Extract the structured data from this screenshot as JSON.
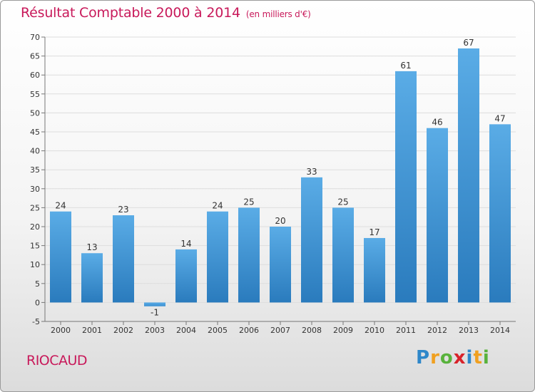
{
  "header": {
    "title": "Résultat Comptable 2000 à 2014",
    "subtitle": "(en milliers d'€)"
  },
  "footer": {
    "commune": "RIOCAUD",
    "brand": "Proxiti"
  },
  "colors": {
    "title": "#c8195a",
    "bar_top": "#5aace6",
    "bar_bottom": "#2a7bbd",
    "grid": "#dddddd"
  },
  "chart_data": {
    "type": "bar",
    "title": "Résultat Comptable 2000 à 2014",
    "subtitle": "(en milliers d'€)",
    "categories": [
      "2000",
      "2001",
      "2002",
      "2003",
      "2004",
      "2005",
      "2006",
      "2007",
      "2008",
      "2009",
      "2010",
      "2011",
      "2012",
      "2013",
      "2014"
    ],
    "values": [
      24,
      13,
      23,
      -1,
      14,
      24,
      25,
      20,
      33,
      25,
      17,
      61,
      46,
      67,
      47
    ],
    "ylim": [
      -5,
      70
    ],
    "yticks": [
      -5,
      0,
      5,
      10,
      15,
      20,
      25,
      30,
      35,
      40,
      45,
      50,
      55,
      60,
      65,
      70
    ],
    "grid": true,
    "legend": "none"
  }
}
